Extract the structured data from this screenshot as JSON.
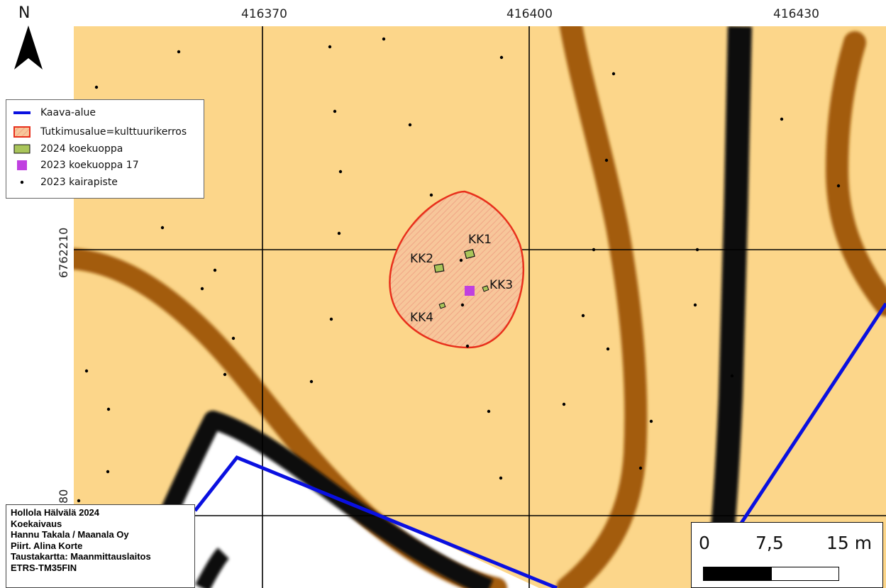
{
  "map": {
    "north_label": "N",
    "coords_top": [
      "416370",
      "416400",
      "416430"
    ],
    "coords_left": [
      "6762210",
      "80"
    ],
    "colors": {
      "background": "#fcd68a",
      "road_brown": "#a35b0f",
      "road_black": "#0a0a0a",
      "kaava_blue": "#0a10e0",
      "study_area_red": "#e8301c",
      "test_pit_green": "#a9c55a",
      "koekuoppa_magenta": "#c040e0",
      "grid": "#000000"
    },
    "test_pits": [
      {
        "label": "KK1"
      },
      {
        "label": "KK2"
      },
      {
        "label": "KK3"
      },
      {
        "label": "KK4"
      }
    ]
  },
  "legend": {
    "items": [
      {
        "label": "Kaava-alue",
        "symbol": "blue-line"
      },
      {
        "label": "Tutkimusalue=kulttuurikerros",
        "symbol": "red-hatched-area"
      },
      {
        "label": "2024 koekuoppa",
        "symbol": "green-square"
      },
      {
        "label": "2023 koekuoppa 17",
        "symbol": "magenta-square"
      },
      {
        "label": "2023 kairapiste",
        "symbol": "black-dot"
      }
    ]
  },
  "credits": {
    "lines": [
      "Hollola Hälvälä 2024",
      "Koekaivaus",
      "Hannu Takala / Maanala Oy",
      "Piirt. Alina Korte",
      "Taustakartta: Maanmittauslaitos",
      "ETRS-TM35FIN"
    ]
  },
  "scale": {
    "labels": [
      "0",
      "7,5",
      "15 m"
    ]
  }
}
